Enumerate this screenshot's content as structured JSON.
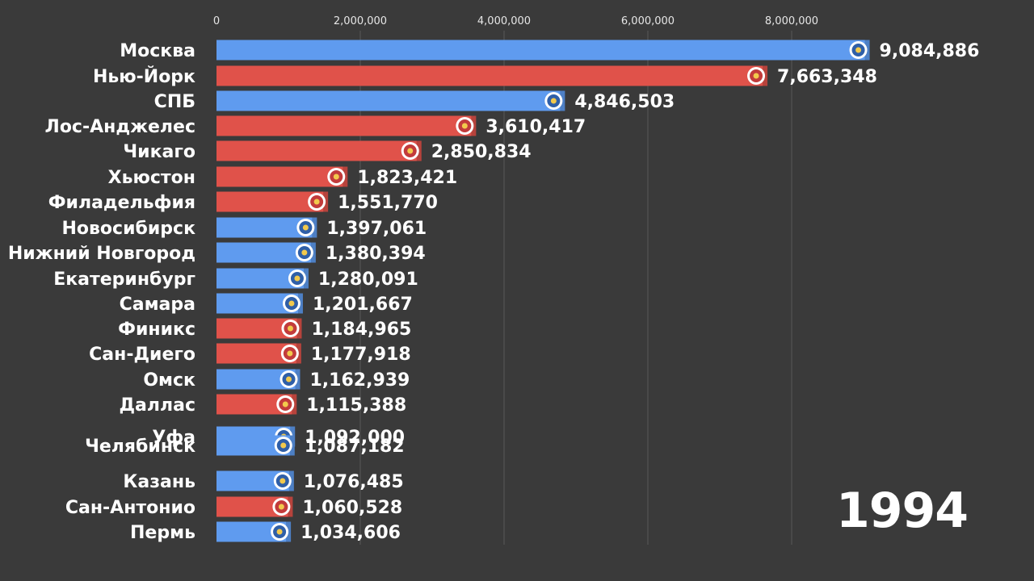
{
  "chart_data": {
    "type": "bar",
    "orientation": "horizontal",
    "x_ticks": [
      0,
      2000000,
      4000000,
      6000000,
      8000000
    ],
    "x_tick_labels": [
      "0",
      "2,000,000",
      "4,000,000",
      "6,000,000",
      "8,000,000"
    ],
    "xlim": [
      0,
      10000000
    ],
    "grid": true,
    "colors": {
      "russia": "#5f9bef",
      "usa": "#e0524a",
      "background": "#3a3a3a",
      "text": "#ffffff",
      "grid": "#4e4e4e"
    },
    "bars": [
      {
        "label": "Москва",
        "value": 9084886,
        "value_label": "9,084,886",
        "group": "russia",
        "emblem": "moscow-emblem-icon"
      },
      {
        "label": "Нью-Йорк",
        "value": 7663348,
        "value_label": "7,663,348",
        "group": "usa",
        "emblem": "new-york-flag-icon"
      },
      {
        "label": "СПБ",
        "value": 4846503,
        "value_label": "4,846,503",
        "group": "russia",
        "emblem": "spb-flag-icon"
      },
      {
        "label": "Лос-Анджелес",
        "value": 3610417,
        "value_label": "3,610,417",
        "group": "usa",
        "emblem": "los-angeles-seal-icon"
      },
      {
        "label": "Чикаго",
        "value": 2850834,
        "value_label": "2,850,834",
        "group": "usa",
        "emblem": "chicago-flag-icon"
      },
      {
        "label": "Хьюстон",
        "value": 1823421,
        "value_label": "1,823,421",
        "group": "usa",
        "emblem": "houston-flag-icon"
      },
      {
        "label": "Филадельфия",
        "value": 1551770,
        "value_label": "1,551,770",
        "group": "usa",
        "emblem": "philadelphia-flag-icon"
      },
      {
        "label": "Новосибирск",
        "value": 1397061,
        "value_label": "1,397,061",
        "group": "russia",
        "emblem": "novosibirsk-emblem-icon"
      },
      {
        "label": "Нижний Новгород",
        "value": 1380394,
        "value_label": "1,380,394",
        "group": "russia",
        "emblem": "nizhny-novgorod-emblem-icon"
      },
      {
        "label": "Екатеринбург",
        "value": 1280091,
        "value_label": "1,280,091",
        "group": "russia",
        "emblem": "yekaterinburg-emblem-icon"
      },
      {
        "label": "Самара",
        "value": 1201667,
        "value_label": "1,201,667",
        "group": "russia",
        "emblem": "samara-flag-icon"
      },
      {
        "label": "Финикс",
        "value": 1184965,
        "value_label": "1,184,965",
        "group": "usa",
        "emblem": "phoenix-flag-icon"
      },
      {
        "label": "Сан-Диего",
        "value": 1177918,
        "value_label": "1,177,918",
        "group": "usa",
        "emblem": "san-diego-flag-icon"
      },
      {
        "label": "Омск",
        "value": 1162939,
        "value_label": "1,162,939",
        "group": "russia",
        "emblem": "omsk-emblem-icon"
      },
      {
        "label": "Даллас",
        "value": 1115388,
        "value_label": "1,115,388",
        "group": "usa",
        "emblem": "dallas-flag-icon"
      },
      {
        "label": "Уфа",
        "value": 1092000,
        "value_label": "1,092,000",
        "group": "russia",
        "emblem": "ufa-emblem-icon"
      },
      {
        "label": "Челябинск",
        "value": 1087182,
        "value_label": "1,087,182",
        "group": "russia",
        "emblem": "chelyabinsk-emblem-icon"
      },
      {
        "label": "Казань",
        "value": 1076485,
        "value_label": "1,076,485",
        "group": "russia",
        "emblem": "kazan-emblem-icon"
      },
      {
        "label": "Сан-Антонио",
        "value": 1060528,
        "value_label": "1,060,528",
        "group": "usa",
        "emblem": "san-antonio-flag-icon"
      },
      {
        "label": "Пермь",
        "value": 1034606,
        "value_label": "1,034,606",
        "group": "russia",
        "emblem": "perm-emblem-icon"
      }
    ],
    "year": "1994"
  }
}
